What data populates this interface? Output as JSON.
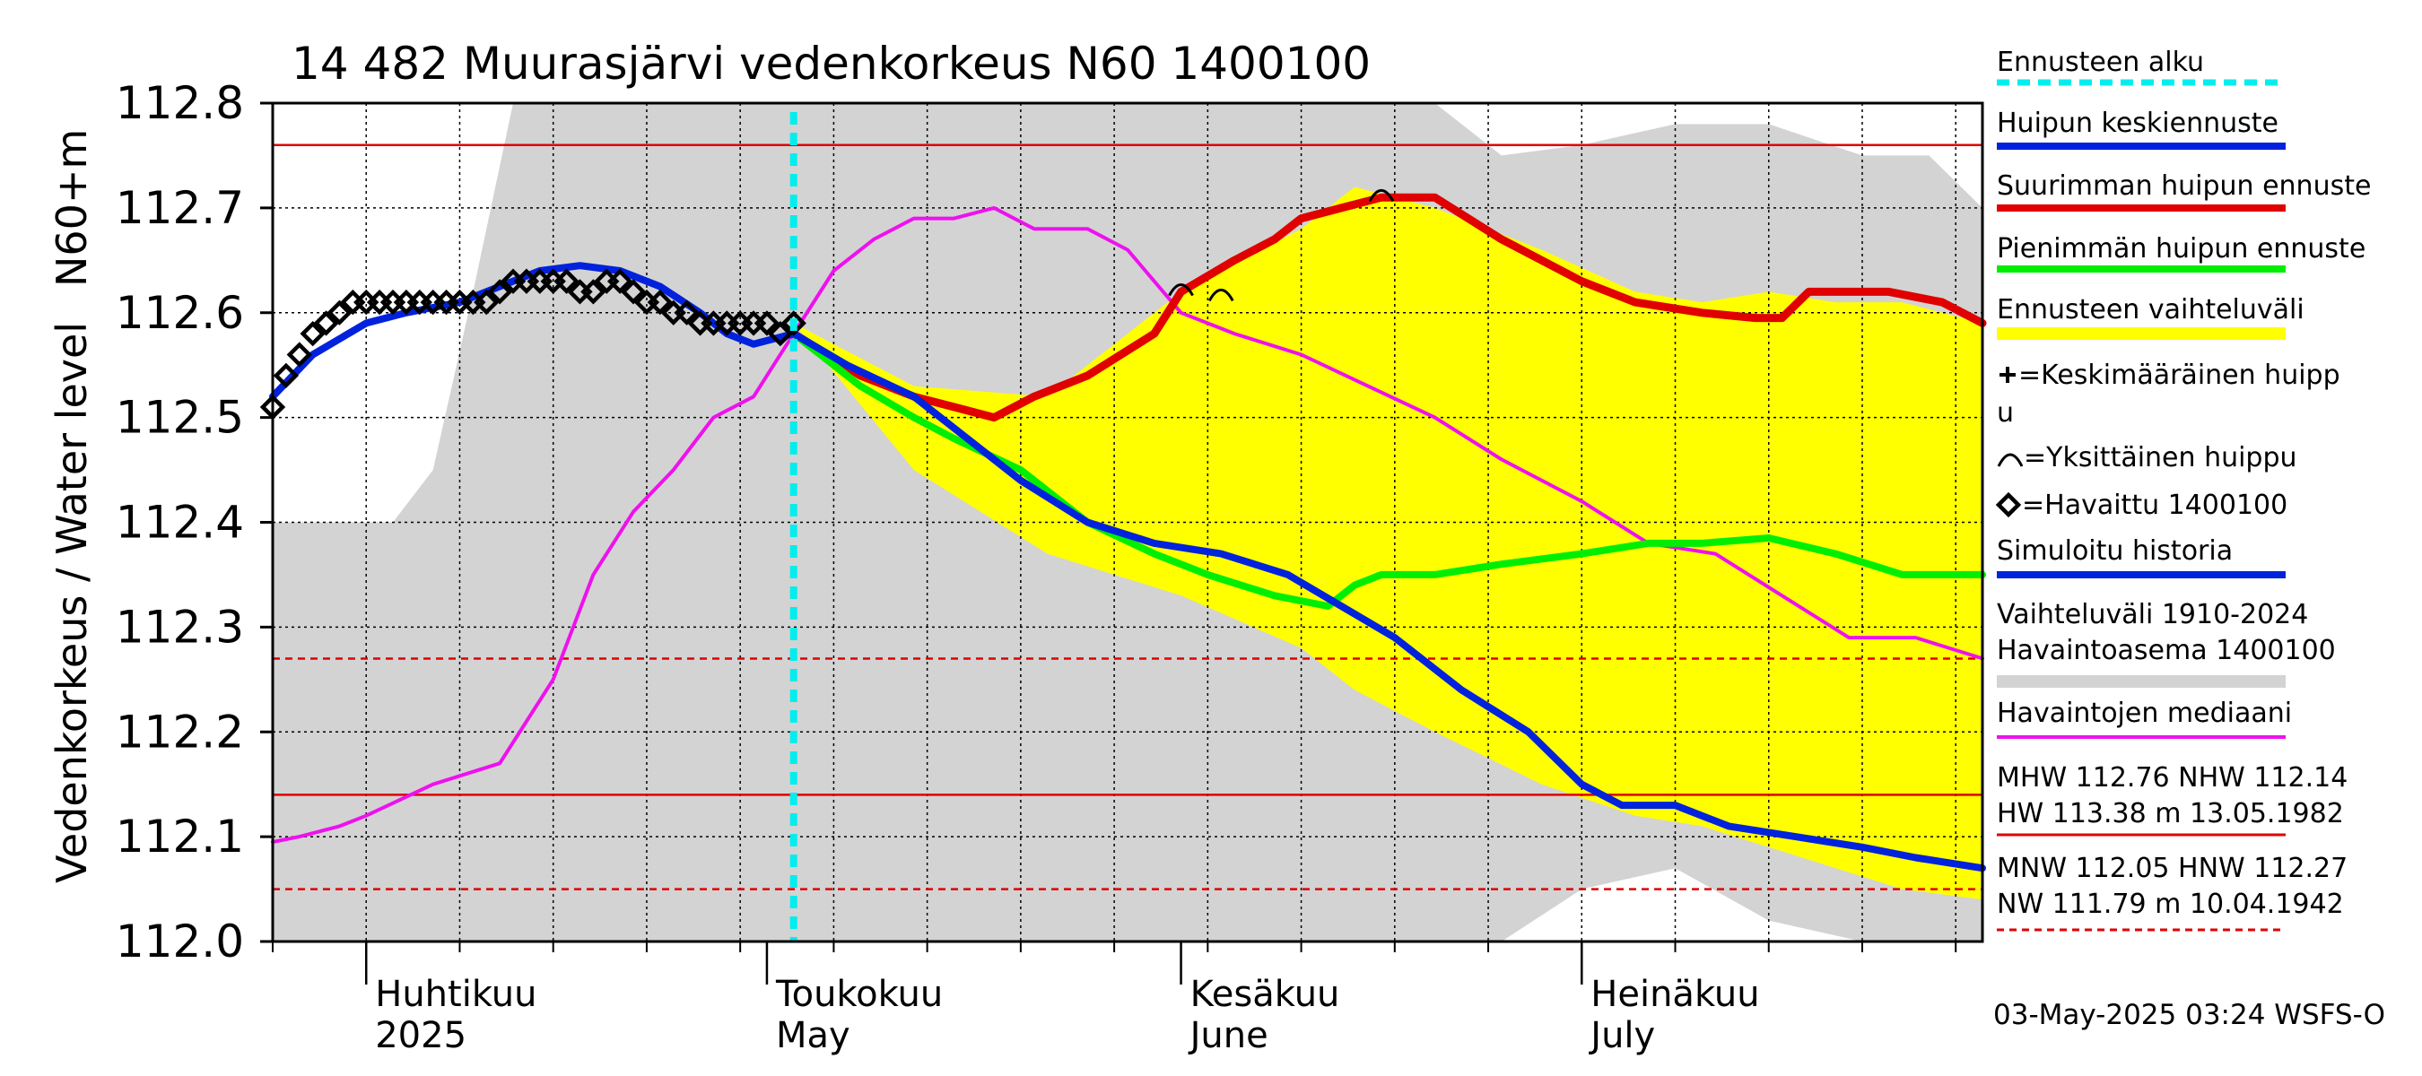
{
  "chart_data": {
    "type": "line",
    "title": "14 482 Muurasjärvi vedenkorkeus N60 1400100",
    "ylabel": "Vedenkorkeus / Water level",
    "ylabel2": "N60+m",
    "ylim": [
      112.0,
      112.8
    ],
    "yticks": [
      "112.0",
      "112.1",
      "112.2",
      "112.3",
      "112.4",
      "112.5",
      "112.6",
      "112.7",
      "112.8"
    ],
    "xrange": [
      "2025-03-25",
      "2025-07-31"
    ],
    "months": [
      {
        "fi": "Huhtikuu",
        "en": "2025",
        "date": "2025-04-01"
      },
      {
        "fi": "Toukokuu",
        "en": "May",
        "date": "2025-05-01"
      },
      {
        "fi": "Kesäkuu",
        "en": "June",
        "date": "2025-06-01"
      },
      {
        "fi": "Heinäkuu",
        "en": "July",
        "date": "2025-07-01"
      }
    ],
    "forecast_start": "2025-05-03",
    "reference_lines": [
      {
        "value": 112.76,
        "style": "solid",
        "color": "#e00000"
      },
      {
        "value": 112.27,
        "style": "dashed",
        "color": "#e00000"
      },
      {
        "value": 112.14,
        "style": "solid",
        "color": "#e00000"
      },
      {
        "value": 112.05,
        "style": "dashed",
        "color": "#e00000"
      }
    ],
    "historical_range": {
      "x": [
        "2025-03-25",
        "2025-03-27",
        "2025-03-30",
        "2025-04-03",
        "2025-04-06",
        "2025-04-09",
        "2025-04-12",
        "2025-04-15",
        "2025-05-01",
        "2025-06-01",
        "2025-06-20",
        "2025-06-25",
        "2025-07-01",
        "2025-07-08",
        "2025-07-15",
        "2025-07-22",
        "2025-07-27",
        "2025-07-31"
      ],
      "upper": [
        112.4,
        112.4,
        112.4,
        112.4,
        112.45,
        112.62,
        112.8,
        112.8,
        112.8,
        112.8,
        112.8,
        112.75,
        112.76,
        112.78,
        112.78,
        112.75,
        112.75,
        112.7
      ],
      "lower": [
        112.0,
        112.0,
        112.0,
        112.0,
        112.0,
        112.0,
        112.0,
        112.0,
        112.0,
        112.0,
        112.0,
        112.0,
        112.05,
        112.07,
        112.02,
        112.0,
        112.0,
        112.0
      ]
    },
    "forecast_range": {
      "x": [
        "2025-05-03",
        "2025-05-12",
        "2025-05-22",
        "2025-06-01",
        "2025-06-10",
        "2025-06-14",
        "2025-06-20",
        "2025-06-28",
        "2025-07-05",
        "2025-07-10",
        "2025-07-15",
        "2025-07-20",
        "2025-07-25",
        "2025-07-31"
      ],
      "upper": [
        112.59,
        112.53,
        112.52,
        112.62,
        112.68,
        112.72,
        112.7,
        112.66,
        112.62,
        112.61,
        112.62,
        112.61,
        112.61,
        112.59
      ],
      "lower": [
        112.59,
        112.45,
        112.37,
        112.33,
        112.28,
        112.24,
        112.2,
        112.15,
        112.12,
        112.11,
        112.09,
        112.07,
        112.05,
        112.04
      ]
    },
    "series": [
      {
        "key": "median",
        "color": "#ee11ee",
        "width": 4,
        "x": [
          "2025-03-25",
          "2025-03-27",
          "2025-03-30",
          "2025-04-01",
          "2025-04-06",
          "2025-04-11",
          "2025-04-15",
          "2025-04-18",
          "2025-04-21",
          "2025-04-24",
          "2025-04-27",
          "2025-04-30",
          "2025-05-03",
          "2025-05-06",
          "2025-05-09",
          "2025-05-12",
          "2025-05-15",
          "2025-05-18",
          "2025-05-21",
          "2025-05-25",
          "2025-05-28",
          "2025-06-01",
          "2025-06-05",
          "2025-06-10",
          "2025-06-15",
          "2025-06-20",
          "2025-06-25",
          "2025-07-01",
          "2025-07-06",
          "2025-07-11",
          "2025-07-16",
          "2025-07-21",
          "2025-07-26",
          "2025-07-31"
        ],
        "y": [
          112.095,
          112.1,
          112.11,
          112.12,
          112.15,
          112.17,
          112.25,
          112.35,
          112.41,
          112.45,
          112.5,
          112.52,
          112.58,
          112.64,
          112.67,
          112.69,
          112.69,
          112.7,
          112.68,
          112.68,
          112.66,
          112.6,
          112.58,
          112.56,
          112.53,
          112.5,
          112.46,
          112.42,
          112.38,
          112.37,
          112.33,
          112.29,
          112.29,
          112.27
        ]
      },
      {
        "key": "max_peak",
        "color": "#e00000",
        "width": 9,
        "x": [
          "2025-05-03",
          "2025-05-08",
          "2025-05-12",
          "2025-05-15",
          "2025-05-18",
          "2025-05-21",
          "2025-05-25",
          "2025-05-30",
          "2025-06-01",
          "2025-06-05",
          "2025-06-08",
          "2025-06-10",
          "2025-06-13",
          "2025-06-16",
          "2025-06-20",
          "2025-06-25",
          "2025-07-01",
          "2025-07-05",
          "2025-07-10",
          "2025-07-14",
          "2025-07-16",
          "2025-07-18",
          "2025-07-24",
          "2025-07-28",
          "2025-07-31"
        ],
        "y": [
          112.58,
          112.54,
          112.52,
          112.51,
          112.5,
          112.52,
          112.54,
          112.58,
          112.62,
          112.65,
          112.67,
          112.69,
          112.7,
          112.71,
          112.71,
          112.67,
          112.63,
          112.61,
          112.6,
          112.595,
          112.595,
          112.62,
          112.62,
          112.61,
          112.59
        ]
      },
      {
        "key": "min_peak",
        "color": "#00ee00",
        "width": 8,
        "x": [
          "2025-05-03",
          "2025-05-08",
          "2025-05-12",
          "2025-05-15",
          "2025-05-20",
          "2025-05-25",
          "2025-05-30",
          "2025-06-03",
          "2025-06-08",
          "2025-06-12",
          "2025-06-14",
          "2025-06-16",
          "2025-06-20",
          "2025-06-25",
          "2025-07-01",
          "2025-07-06",
          "2025-07-10",
          "2025-07-15",
          "2025-07-20",
          "2025-07-25",
          "2025-07-31"
        ],
        "y": [
          112.58,
          112.53,
          112.5,
          112.48,
          112.45,
          112.4,
          112.37,
          112.35,
          112.33,
          112.32,
          112.34,
          112.35,
          112.35,
          112.36,
          112.37,
          112.38,
          112.38,
          112.385,
          112.37,
          112.35,
          112.35
        ]
      },
      {
        "key": "mean_peak",
        "color": "#0022dd",
        "width": 8,
        "x": [
          "2025-03-25",
          "2025-03-28",
          "2025-04-01",
          "2025-04-04",
          "2025-04-08",
          "2025-04-11",
          "2025-04-14",
          "2025-04-17",
          "2025-04-20",
          "2025-04-23",
          "2025-04-26",
          "2025-04-28",
          "2025-04-30",
          "2025-05-03",
          "2025-05-07",
          "2025-05-12",
          "2025-05-16",
          "2025-05-20",
          "2025-05-25",
          "2025-05-30",
          "2025-06-04",
          "2025-06-09",
          "2025-06-13",
          "2025-06-17",
          "2025-06-22",
          "2025-06-27",
          "2025-07-01",
          "2025-07-04",
          "2025-07-08",
          "2025-07-12",
          "2025-07-17",
          "2025-07-22",
          "2025-07-26",
          "2025-07-31"
        ],
        "y": [
          112.52,
          112.56,
          112.59,
          112.6,
          112.61,
          112.625,
          112.64,
          112.645,
          112.64,
          112.625,
          112.6,
          112.58,
          112.57,
          112.58,
          112.55,
          112.52,
          112.48,
          112.44,
          112.4,
          112.38,
          112.37,
          112.35,
          112.32,
          112.29,
          112.24,
          112.2,
          112.15,
          112.13,
          112.13,
          112.11,
          112.1,
          112.09,
          112.08,
          112.07
        ]
      }
    ],
    "observed": {
      "x": [
        "2025-03-25",
        "2025-03-26",
        "2025-03-27",
        "2025-03-28",
        "2025-03-29",
        "2025-03-30",
        "2025-03-31",
        "2025-04-01",
        "2025-04-02",
        "2025-04-03",
        "2025-04-04",
        "2025-04-05",
        "2025-04-06",
        "2025-04-07",
        "2025-04-08",
        "2025-04-09",
        "2025-04-10",
        "2025-04-11",
        "2025-04-12",
        "2025-04-13",
        "2025-04-14",
        "2025-04-15",
        "2025-04-16",
        "2025-04-17",
        "2025-04-18",
        "2025-04-19",
        "2025-04-20",
        "2025-04-21",
        "2025-04-22",
        "2025-04-23",
        "2025-04-24",
        "2025-04-25",
        "2025-04-26",
        "2025-04-27",
        "2025-04-28",
        "2025-04-29",
        "2025-04-30",
        "2025-05-01",
        "2025-05-02",
        "2025-05-03"
      ],
      "y": [
        112.51,
        112.54,
        112.56,
        112.58,
        112.59,
        112.6,
        112.61,
        112.61,
        112.61,
        112.61,
        112.61,
        112.61,
        112.61,
        112.61,
        112.61,
        112.61,
        112.61,
        112.62,
        112.63,
        112.63,
        112.63,
        112.63,
        112.63,
        112.62,
        112.62,
        112.63,
        112.63,
        112.62,
        112.61,
        112.61,
        112.6,
        112.6,
        112.59,
        112.59,
        112.59,
        112.59,
        112.59,
        112.59,
        112.58,
        112.59
      ]
    },
    "single_peaks": [
      {
        "date": "2025-06-01",
        "value": 112.625
      },
      {
        "date": "2025-06-04",
        "value": 112.62
      },
      {
        "date": "2025-06-16",
        "value": 112.715
      }
    ],
    "legend": [
      {
        "key": "forecast_start",
        "label": "Ennusteen alku",
        "style": "dashed",
        "color": "#00eeee"
      },
      {
        "key": "mean_peak",
        "label": "Huipun keskiennuste",
        "style": "line",
        "color": "#0022dd"
      },
      {
        "key": "max_peak",
        "label": "Suurimman huipun ennuste",
        "style": "line",
        "color": "#e00000"
      },
      {
        "key": "min_peak",
        "label": "Pienimmän huipun ennuste",
        "style": "line",
        "color": "#00ee00"
      },
      {
        "key": "forecast_range",
        "label": "Ennusteen vaihteluväli",
        "style": "band",
        "color": "#ffff00"
      },
      {
        "key": "mean_peak_marker",
        "label": "=Keskimääräinen huipp",
        "label2": "u",
        "style": "plus",
        "color": "#000000"
      },
      {
        "key": "single_peak",
        "label": "=Yksittäinen huippu",
        "style": "arc",
        "color": "#000000"
      },
      {
        "key": "observed",
        "label": "=Havaittu 1400100",
        "style": "diamond",
        "color": "#000000"
      },
      {
        "key": "simulated",
        "label": "Simuloitu historia",
        "style": "line",
        "color": "#0022dd"
      },
      {
        "key": "historical_range",
        "label": "Vaihteluväli 1910-2024",
        "label2": " Havaintoasema 1400100",
        "style": "band",
        "color": "#d3d3d3"
      },
      {
        "key": "median",
        "label": "Havaintojen mediaani",
        "style": "thin",
        "color": "#ee11ee"
      },
      {
        "key": "mhw",
        "label": "MHW 112.76 NHW 112.14",
        "label2": "HW 113.38 m 13.05.1982",
        "style": "solid",
        "color": "#e00000"
      },
      {
        "key": "mnw",
        "label": "MNW 112.05 HNW 112.27",
        "label2": "NW 111.79 m 10.04.1942",
        "style": "dashed",
        "color": "#e00000"
      }
    ],
    "footer": "03-May-2025 03:24 WSFS-O"
  }
}
